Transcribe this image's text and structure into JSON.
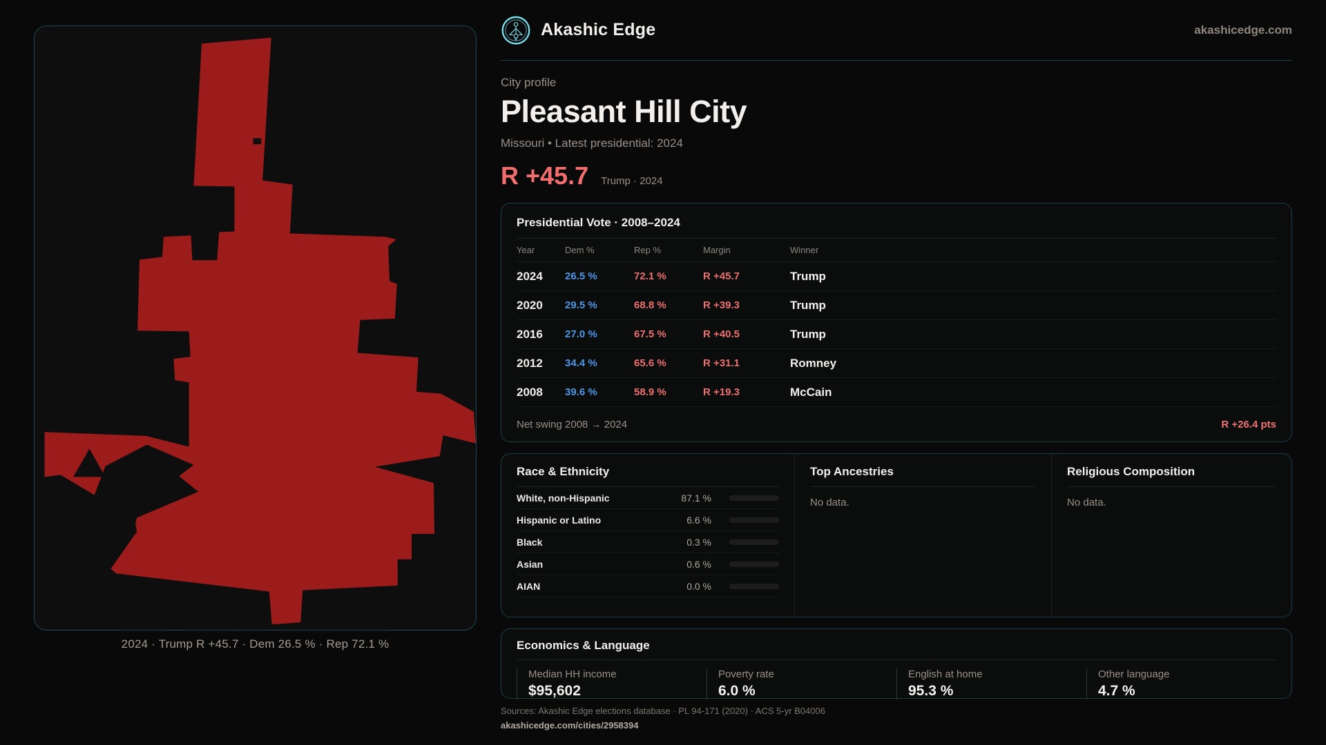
{
  "brand": {
    "name": "Akashic Edge",
    "site": "akashicedge.com"
  },
  "page": {
    "eyebrow": "City profile",
    "title": "Pleasant Hill City",
    "subtitle": "Missouri • Latest presidential: 2024",
    "headline_margin": "R +45.7",
    "headline_context": "Trump · 2024"
  },
  "map": {
    "caption": "2024 · Trump  R +45.7 · Dem 26.5 % · Rep 72.1 %",
    "shape_color": "#9c1c1c"
  },
  "vote_table": {
    "title": "Presidential Vote · 2008–2024",
    "columns": [
      "Year",
      "Dem %",
      "Rep %",
      "Margin",
      "Winner"
    ],
    "rows": [
      {
        "year": "2024",
        "dem": "26.5 %",
        "rep": "72.1 %",
        "margin": "R +45.7",
        "winner": "Trump"
      },
      {
        "year": "2020",
        "dem": "29.5 %",
        "rep": "68.8 %",
        "margin": "R +39.3",
        "winner": "Trump"
      },
      {
        "year": "2016",
        "dem": "27.0 %",
        "rep": "67.5 %",
        "margin": "R +40.5",
        "winner": "Trump"
      },
      {
        "year": "2012",
        "dem": "34.4 %",
        "rep": "65.6 %",
        "margin": "R +31.1",
        "winner": "Romney"
      },
      {
        "year": "2008",
        "dem": "39.6 %",
        "rep": "58.9 %",
        "margin": "R +19.3",
        "winner": "McCain"
      }
    ],
    "net_swing_label": "Net swing 2008 → 2024",
    "net_swing_value": "R +26.4 pts"
  },
  "race": {
    "title": "Race & Ethnicity",
    "rows": [
      {
        "label": "White, non-Hispanic",
        "value": "87.1 %",
        "pct": 87.1,
        "color": "#93a9c4"
      },
      {
        "label": "Hispanic or Latino",
        "value": "6.6 %",
        "pct": 6.6,
        "color": "#e09a18"
      },
      {
        "label": "Black",
        "value": "0.3 %",
        "pct": 0.3,
        "color": "#3a3a3a"
      },
      {
        "label": "Asian",
        "value": "0.6 %",
        "pct": 0.6,
        "color": "#3a3a3a"
      },
      {
        "label": "AIAN",
        "value": "0.0 %",
        "pct": 0.0,
        "color": "#3a3a3a"
      }
    ]
  },
  "ancestries": {
    "title": "Top Ancestries",
    "empty": "No data."
  },
  "religion": {
    "title": "Religious Composition",
    "empty": "No data."
  },
  "economics": {
    "title": "Economics & Language",
    "stats": [
      {
        "label": "Median HH income",
        "value": "$95,602"
      },
      {
        "label": "Poverty rate",
        "value": "6.0 %"
      },
      {
        "label": "English at home",
        "value": "95.3 %"
      },
      {
        "label": "Other language",
        "value": "4.7 %"
      }
    ]
  },
  "footer": {
    "sources": "Sources: Akashic Edge elections database · PL 94-171 (2020) · ACS 5-yr B04006",
    "permalink": "akashicedge.com/cities/2958394"
  },
  "colors": {
    "accent_teal": "#79d9e6",
    "dem_blue": "#4e97e8",
    "rep_red": "#ef7070",
    "map_red": "#9c1c1c",
    "card_border": "#1b4047"
  }
}
